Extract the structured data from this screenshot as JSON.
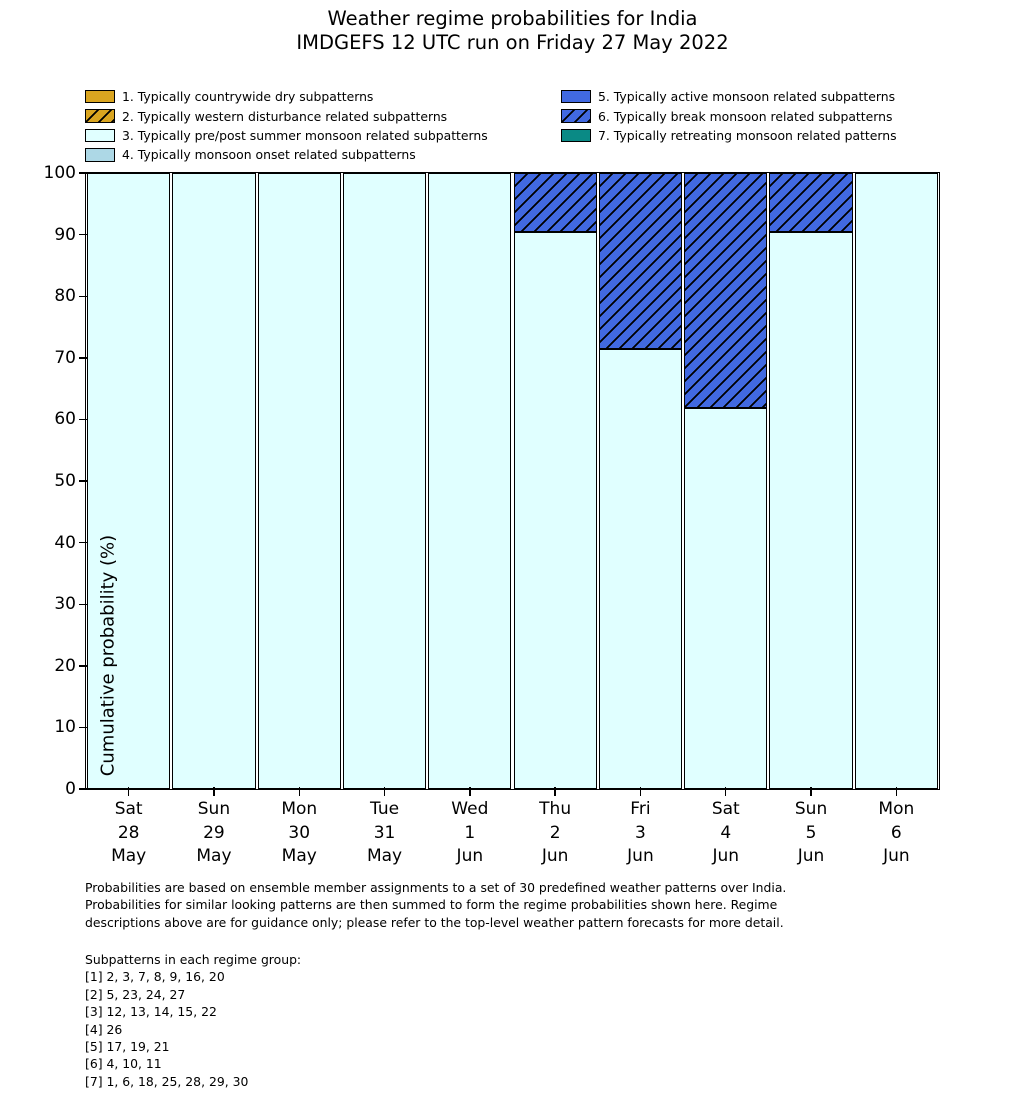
{
  "title": {
    "line1": "Weather regime probabilities for India",
    "line2": "IMDGEFS 12 UTC run on Friday 27 May 2022"
  },
  "colors": {
    "edge": "#000000",
    "background": "#ffffff",
    "regime1": "#DAA520",
    "regime2": "#DAA520",
    "regime3": "#E0FFFF",
    "regime4": "#ADD8E6",
    "regime5": "#4169E1",
    "regime6": "#4169E1",
    "regime7": "#0A8A85"
  },
  "legend": {
    "items": [
      {
        "label": "1. Typically countrywide dry subpatterns",
        "color": "#DAA520",
        "hatch": false,
        "column": "left"
      },
      {
        "label": "2. Typically western disturbance related subpatterns",
        "color": "#DAA520",
        "hatch": true,
        "column": "left"
      },
      {
        "label": "3. Typically pre/post summer monsoon related subpatterns",
        "color": "#E0FFFF",
        "hatch": false,
        "column": "left"
      },
      {
        "label": "4. Typically monsoon onset related subpatterns",
        "color": "#ADD8E6",
        "hatch": false,
        "column": "left"
      },
      {
        "label": "5. Typically active monsoon related subpatterns",
        "color": "#4169E1",
        "hatch": false,
        "column": "right"
      },
      {
        "label": "6. Typically break monsoon related subpatterns",
        "color": "#4169E1",
        "hatch": true,
        "column": "right"
      },
      {
        "label": "7. Typically retreating monsoon related patterns",
        "color": "#0A8A85",
        "hatch": false,
        "column": "right"
      }
    ]
  },
  "chart_data": {
    "type": "bar",
    "stacked": true,
    "title": "Weather regime probabilities for India — IMDGEFS 12 UTC run on Friday 27 May 2022",
    "xlabel": "",
    "ylabel": "Cumulative probability (%)",
    "ylim": [
      0,
      100
    ],
    "yticks": [
      0,
      10,
      20,
      30,
      40,
      50,
      60,
      70,
      80,
      90,
      100
    ],
    "grid": false,
    "legend_position": "above plot, two columns",
    "categories": [
      {
        "day": "Sat",
        "date": "28",
        "month": "May"
      },
      {
        "day": "Sun",
        "date": "29",
        "month": "May"
      },
      {
        "day": "Mon",
        "date": "30",
        "month": "May"
      },
      {
        "day": "Tue",
        "date": "31",
        "month": "May"
      },
      {
        "day": "Wed",
        "date": "1",
        "month": "Jun"
      },
      {
        "day": "Thu",
        "date": "2",
        "month": "Jun"
      },
      {
        "day": "Fri",
        "date": "3",
        "month": "Jun"
      },
      {
        "day": "Sat",
        "date": "4",
        "month": "Jun"
      },
      {
        "day": "Sun",
        "date": "5",
        "month": "Jun"
      },
      {
        "day": "Mon",
        "date": "6",
        "month": "Jun"
      }
    ],
    "series": [
      {
        "name": "3. Typically pre/post summer monsoon related subpatterns",
        "color": "#E0FFFF",
        "hatch": false,
        "values": [
          100,
          100,
          100,
          100,
          100,
          90.5,
          71.4,
          61.9,
          90.5,
          100
        ]
      },
      {
        "name": "6. Typically break monsoon related subpatterns",
        "color": "#4169E1",
        "hatch": true,
        "values": [
          0,
          0,
          0,
          0,
          0,
          9.5,
          28.6,
          38.1,
          9.5,
          0
        ]
      }
    ]
  },
  "footer": {
    "para": [
      "Probabilities are based on ensemble member assignments to a set of 30 predefined weather patterns over India.",
      "Probabilities for similar looking patterns are then summed to form the regime probabilities shown here. Regime",
      "descriptions above are for guidance only; please refer to the top-level weather pattern forecasts for more detail."
    ],
    "subpatterns_title": "Subpatterns in each regime group:",
    "groups": [
      "[1] 2, 3, 7, 8, 9, 16, 20",
      "[2] 5, 23, 24, 27",
      "[3] 12, 13, 14, 15, 22",
      "[4] 26",
      "[5] 17, 19, 21",
      "[6] 4, 10, 11",
      "[7] 1, 6, 18, 25, 28, 29, 30"
    ]
  }
}
